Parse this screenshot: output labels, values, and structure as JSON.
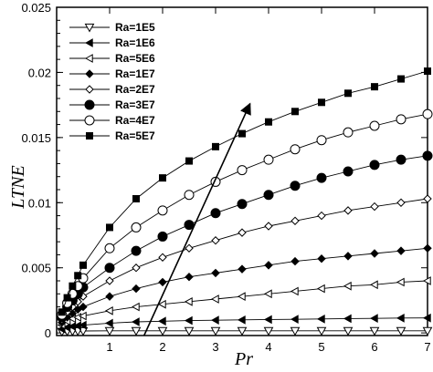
{
  "chart_data": {
    "type": "line",
    "title": "",
    "xlabel": "Pr",
    "ylabel": "LTNE",
    "xlim": [
      0,
      7
    ],
    "ylim": [
      -0.0002,
      0.025
    ],
    "xticks": [
      1,
      2,
      3,
      4,
      5,
      6,
      7
    ],
    "xtick_labels": [
      "1",
      "2",
      "3",
      "4",
      "5",
      "6",
      "7"
    ],
    "yticks": [
      0,
      0.005,
      0.01,
      0.015,
      0.02,
      0.025
    ],
    "ytick_labels": [
      "0",
      "0.005",
      "0.01",
      "0.015",
      "0.02",
      "0.025"
    ],
    "grid": false,
    "legend_position": "top-left",
    "x": [
      0.1,
      0.2,
      0.3,
      0.4,
      0.5,
      1.0,
      1.5,
      2.0,
      2.5,
      3.0,
      3.5,
      4.0,
      4.5,
      5.0,
      5.5,
      6.0,
      6.5,
      7.0
    ],
    "series": [
      {
        "name": "Ra=1E5",
        "marker": "triangle-down-open",
        "values": [
          0.0001,
          0.00012,
          0.00013,
          0.00014,
          0.00015,
          0.00016,
          0.00016,
          0.00016,
          0.00016,
          0.00016,
          0.00016,
          0.00016,
          0.00016,
          0.00016,
          0.00016,
          0.00016,
          0.00016,
          0.00016
        ]
      },
      {
        "name": "Ra=1E6",
        "marker": "triangle-left-filled",
        "values": [
          0.0003,
          0.00042,
          0.0005,
          0.00055,
          0.0006,
          0.00075,
          0.00085,
          0.0009,
          0.00095,
          0.00098,
          0.001,
          0.00103,
          0.00105,
          0.00107,
          0.0011,
          0.00112,
          0.00114,
          0.00115
        ]
      },
      {
        "name": "Ra=5E6",
        "marker": "triangle-left-open",
        "values": [
          0.0006,
          0.0009,
          0.0011,
          0.0012,
          0.0013,
          0.0017,
          0.002,
          0.0022,
          0.0024,
          0.0026,
          0.0028,
          0.003,
          0.0032,
          0.0034,
          0.0036,
          0.0037,
          0.0039,
          0.004
        ]
      },
      {
        "name": "Ra=1E7",
        "marker": "diamond-filled",
        "values": [
          0.0008,
          0.0012,
          0.0015,
          0.0018,
          0.002,
          0.0028,
          0.0034,
          0.0039,
          0.0043,
          0.0046,
          0.0049,
          0.0052,
          0.0055,
          0.0057,
          0.0059,
          0.0061,
          0.0063,
          0.0065
        ]
      },
      {
        "name": "Ra=2E7",
        "marker": "diamond-open",
        "values": [
          0.001,
          0.0016,
          0.002,
          0.0024,
          0.0028,
          0.004,
          0.005,
          0.0058,
          0.0065,
          0.0071,
          0.0077,
          0.0082,
          0.0086,
          0.009,
          0.0094,
          0.0097,
          0.01,
          0.0103
        ]
      },
      {
        "name": "Ra=3E7",
        "marker": "circle-filled",
        "values": [
          0.0012,
          0.002,
          0.0025,
          0.003,
          0.0035,
          0.005,
          0.0063,
          0.0074,
          0.0083,
          0.0092,
          0.0099,
          0.0106,
          0.0113,
          0.0119,
          0.0124,
          0.0129,
          0.0133,
          0.0136
        ]
      },
      {
        "name": "Ra=4E7",
        "marker": "circle-open",
        "values": [
          0.0014,
          0.0023,
          0.003,
          0.0036,
          0.0042,
          0.0065,
          0.0081,
          0.0094,
          0.0106,
          0.0116,
          0.0125,
          0.0133,
          0.0141,
          0.0148,
          0.0154,
          0.0159,
          0.0164,
          0.0168
        ]
      },
      {
        "name": "Ra=5E7",
        "marker": "square-filled",
        "values": [
          0.0016,
          0.0027,
          0.0036,
          0.0044,
          0.0052,
          0.0081,
          0.0103,
          0.0119,
          0.0132,
          0.0143,
          0.0153,
          0.0162,
          0.017,
          0.0177,
          0.0184,
          0.0189,
          0.0195,
          0.0201
        ]
      }
    ],
    "annotations": [
      {
        "type": "arrow",
        "from": [
          1.65,
          -0.0002
        ],
        "to": [
          3.65,
          0.0176
        ]
      }
    ]
  }
}
